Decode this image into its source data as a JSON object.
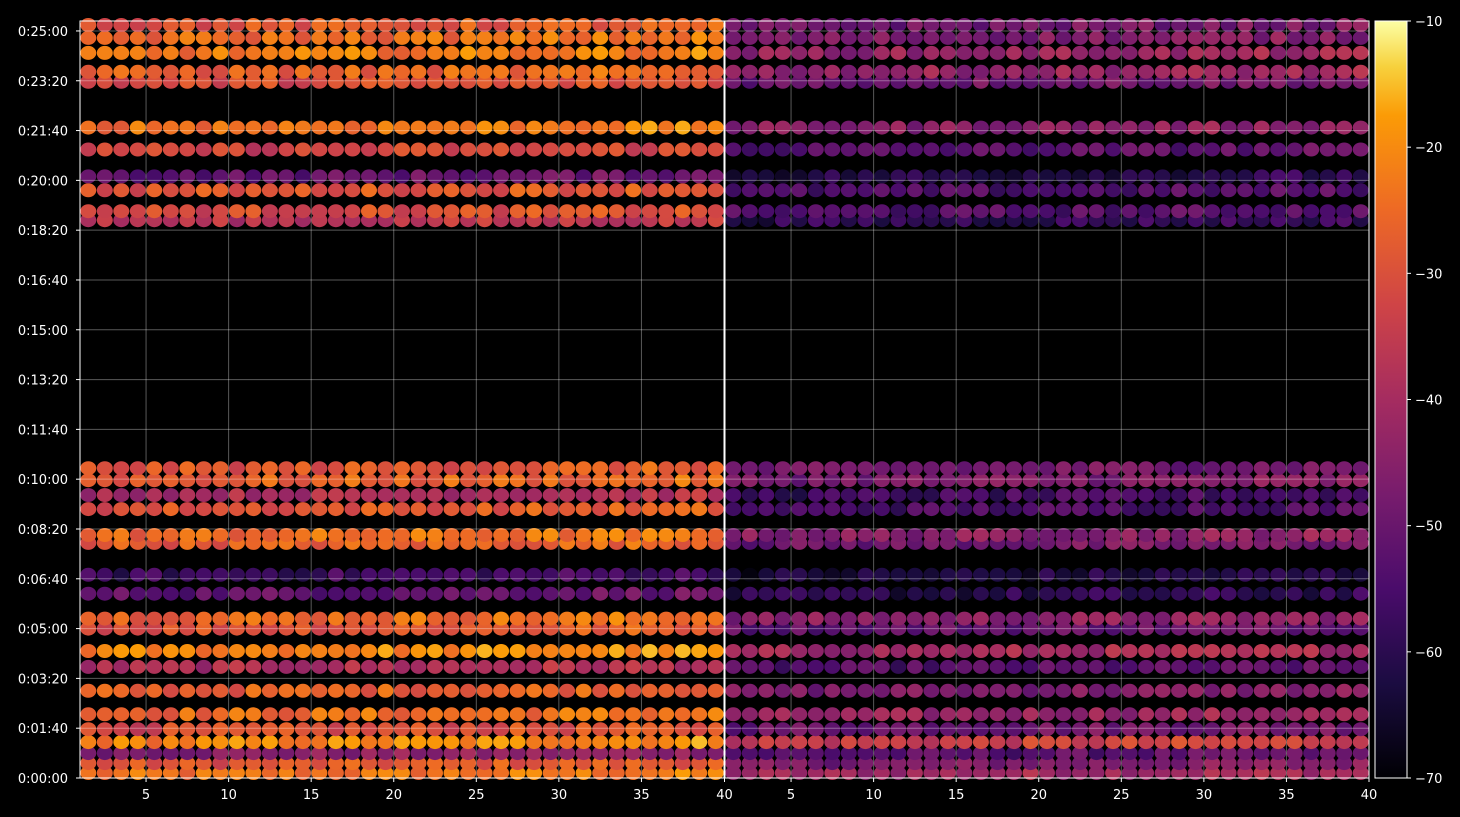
{
  "chart_data": {
    "type": "heatmap",
    "colormap": "inferno",
    "grid": true,
    "background": "#000000",
    "panels": [
      {
        "name": "left",
        "x_ticks": [
          5,
          10,
          15,
          20,
          25,
          30,
          35
        ],
        "x_tick_labels": [
          "5",
          "10",
          "15",
          "20",
          "25",
          "30",
          "35"
        ],
        "x_end_label": "40",
        "xlim": [
          1,
          40
        ]
      },
      {
        "name": "right",
        "x_ticks": [
          5,
          10,
          15,
          20,
          25,
          30,
          35,
          40
        ],
        "x_tick_labels": [
          "5",
          "10",
          "15",
          "20",
          "25",
          "30",
          "35",
          "40"
        ],
        "xlim": [
          1,
          40
        ]
      }
    ],
    "y_axis": {
      "unit": "seconds",
      "ylim": [
        0,
        1520
      ],
      "ticks": [
        0,
        100,
        200,
        300,
        400,
        500,
        600,
        700,
        800,
        900,
        1000,
        1100,
        1200,
        1300,
        1400,
        1500
      ],
      "tick_labels": [
        "0:00:00",
        "0:01:40",
        "0:03:20",
        "0:05:00",
        "0:06:40",
        "0:08:20",
        "0:10:00",
        "0:11:40",
        "0:13:20",
        "0:15:00",
        "0:16:40",
        "0:18:20",
        "0:20:00",
        "0:21:40",
        "0:23:20",
        "0:25:00"
      ]
    },
    "colorbar": {
      "range": [
        -70,
        -10
      ],
      "ticks": [
        -70,
        -60,
        -50,
        -40,
        -30,
        -20,
        -10
      ],
      "tick_labels": [
        "−70",
        "−60",
        "−50",
        "−40",
        "−30",
        "−20",
        "−10"
      ]
    },
    "bands": [
      {
        "t": 10,
        "left": -25,
        "right": -42
      },
      {
        "t": 30,
        "left": -30,
        "right": -48
      },
      {
        "t": 50,
        "left": -46,
        "right": -54
      },
      {
        "t": 72,
        "left": -22,
        "right": -35
      },
      {
        "t": 98,
        "left": -32,
        "right": -50
      },
      {
        "t": 128,
        "left": -26,
        "right": -44
      },
      {
        "t": 175,
        "left": -28,
        "right": -48
      },
      {
        "t": 223,
        "left": -40,
        "right": -55
      },
      {
        "t": 255,
        "left": -22,
        "right": -42
      },
      {
        "t": 300,
        "left": -30,
        "right": -52
      },
      {
        "t": 320,
        "left": -26,
        "right": -46
      },
      {
        "t": 370,
        "left": -52,
        "right": -62
      },
      {
        "t": 408,
        "left": -58,
        "right": -64
      },
      {
        "t": 472,
        "left": -28,
        "right": -50
      },
      {
        "t": 488,
        "left": -26,
        "right": -46
      },
      {
        "t": 540,
        "left": -30,
        "right": -56
      },
      {
        "t": 568,
        "left": -40,
        "right": -58
      },
      {
        "t": 598,
        "left": -28,
        "right": -48
      },
      {
        "t": 622,
        "left": -30,
        "right": -50
      },
      {
        "t": 1120,
        "left": -38,
        "right": -60
      },
      {
        "t": 1138,
        "left": -32,
        "right": -55
      },
      {
        "t": 1180,
        "left": -30,
        "right": -56
      },
      {
        "t": 1208,
        "left": -52,
        "right": -62
      },
      {
        "t": 1262,
        "left": -34,
        "right": -54
      },
      {
        "t": 1306,
        "left": -24,
        "right": -46
      },
      {
        "t": 1398,
        "left": -32,
        "right": -50
      },
      {
        "t": 1418,
        "left": -28,
        "right": -44
      },
      {
        "t": 1456,
        "left": -24,
        "right": -44
      },
      {
        "t": 1486,
        "left": -26,
        "right": -48
      },
      {
        "t": 1512,
        "left": -30,
        "right": -50
      }
    ]
  }
}
